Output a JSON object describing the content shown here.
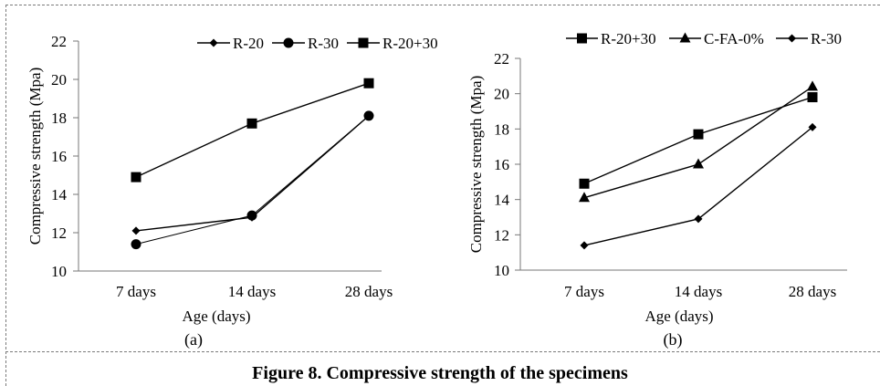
{
  "caption": "Figure 8. Compressive strength of the specimens",
  "chart_data": [
    {
      "type": "line",
      "panel_label": "(a)",
      "categories": [
        "7 days",
        "14 days",
        "28 days"
      ],
      "xlabel": "Age (days)",
      "ylabel": "Compressive  strength  (Mpa)",
      "ylim": [
        10,
        22
      ],
      "yticks": [
        10,
        12,
        14,
        16,
        18,
        20,
        22
      ],
      "grid": false,
      "legend_position": "top",
      "series": [
        {
          "name": "R-20",
          "marker": "diamond",
          "values": [
            12.1,
            12.8,
            18.1
          ]
        },
        {
          "name": "R-30",
          "marker": "circle",
          "values": [
            11.4,
            12.9,
            18.1
          ]
        },
        {
          "name": "R-20+30",
          "marker": "square",
          "values": [
            14.9,
            17.7,
            19.8
          ]
        }
      ]
    },
    {
      "type": "line",
      "panel_label": "(b)",
      "categories": [
        "7 days",
        "14 days",
        "28 days"
      ],
      "xlabel": "Age (days)",
      "ylabel": "Compressive  strength  (Mpa)",
      "ylim": [
        10,
        22
      ],
      "yticks": [
        10,
        12,
        14,
        16,
        18,
        20,
        22
      ],
      "grid": false,
      "legend_position": "top",
      "series": [
        {
          "name": "R-20+30",
          "marker": "square",
          "values": [
            14.9,
            17.7,
            19.8
          ]
        },
        {
          "name": "C-FA-0%",
          "marker": "triangle",
          "values": [
            14.1,
            16.0,
            20.4
          ]
        },
        {
          "name": "R-30",
          "marker": "diamond",
          "values": [
            11.4,
            12.9,
            18.1
          ]
        }
      ]
    }
  ]
}
